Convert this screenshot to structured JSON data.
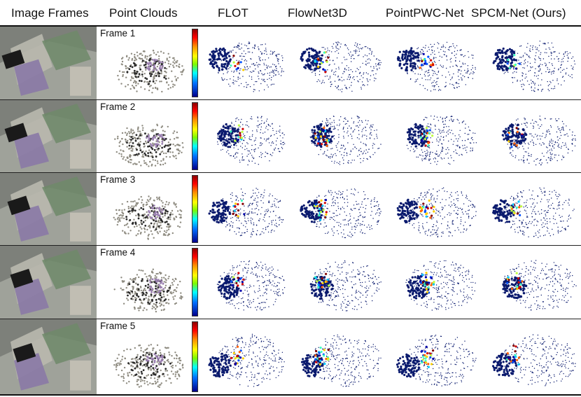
{
  "headers": {
    "image_frames": "Image Frames",
    "point_clouds": "Point Clouds",
    "flot": "FLOT",
    "flownet3d": "FlowNet3D",
    "pointpwc": "PointPWC-Net",
    "spcm": "SPCM-Net (Ours)"
  },
  "frames": [
    {
      "label": "Frame 1"
    },
    {
      "label": "Frame 2"
    },
    {
      "label": "Frame 3"
    },
    {
      "label": "Frame 4"
    },
    {
      "label": "Frame 5"
    }
  ],
  "colors": {
    "navy": "#0a1a6e",
    "photo_grey": "#8d8f88",
    "photo_dark": "#1a1a1a",
    "photo_purple": "#9a7fb0",
    "photo_tan": "#c7ad7a"
  }
}
